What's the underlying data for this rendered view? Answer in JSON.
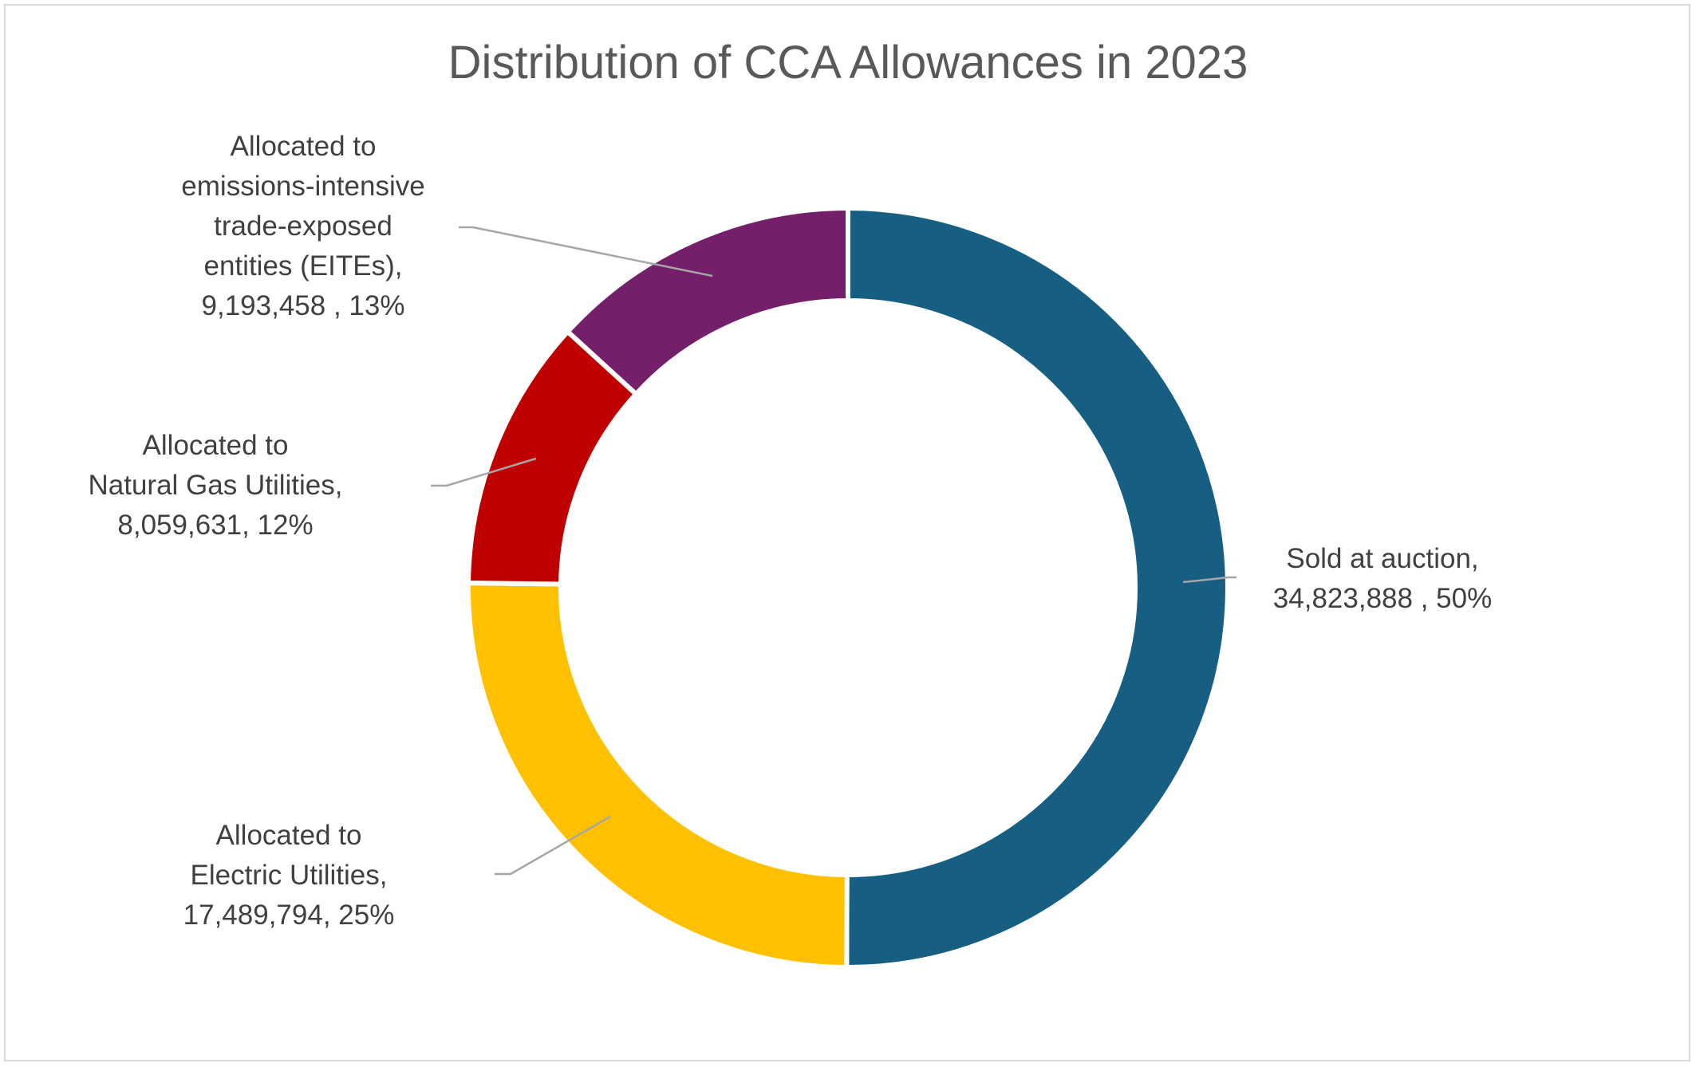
{
  "chart_data": {
    "type": "pie",
    "variant": "doughnut",
    "title": "Distribution of CCA Allowances in 2023",
    "categories": [
      "Sold at auction",
      "Allocated to Electric Utilities",
      "Allocated to Natural Gas Utilities",
      "Allocated to emissions-intensive trade-exposed entities (EITEs)"
    ],
    "values": [
      34823888,
      17489794,
      8059631,
      9193458
    ],
    "percentages": [
      50,
      25,
      12,
      13
    ],
    "colors": [
      "#175F82",
      "#FFC000",
      "#C00000",
      "#741F6A"
    ],
    "labels": [
      [
        "Sold at auction,",
        "34,823,888 , 50%"
      ],
      [
        "Allocated to",
        "Electric Utilities,",
        "17,489,794, 25%"
      ],
      [
        "Allocated to",
        "Natural Gas Utilities,",
        "8,059,631, 12%"
      ],
      [
        "Allocated to",
        "emissions-intensive",
        "trade-exposed",
        "entities (EITEs),",
        "9,193,458 , 13%"
      ]
    ],
    "legend": "none",
    "label_position": "outside-with-leader-lines"
  }
}
